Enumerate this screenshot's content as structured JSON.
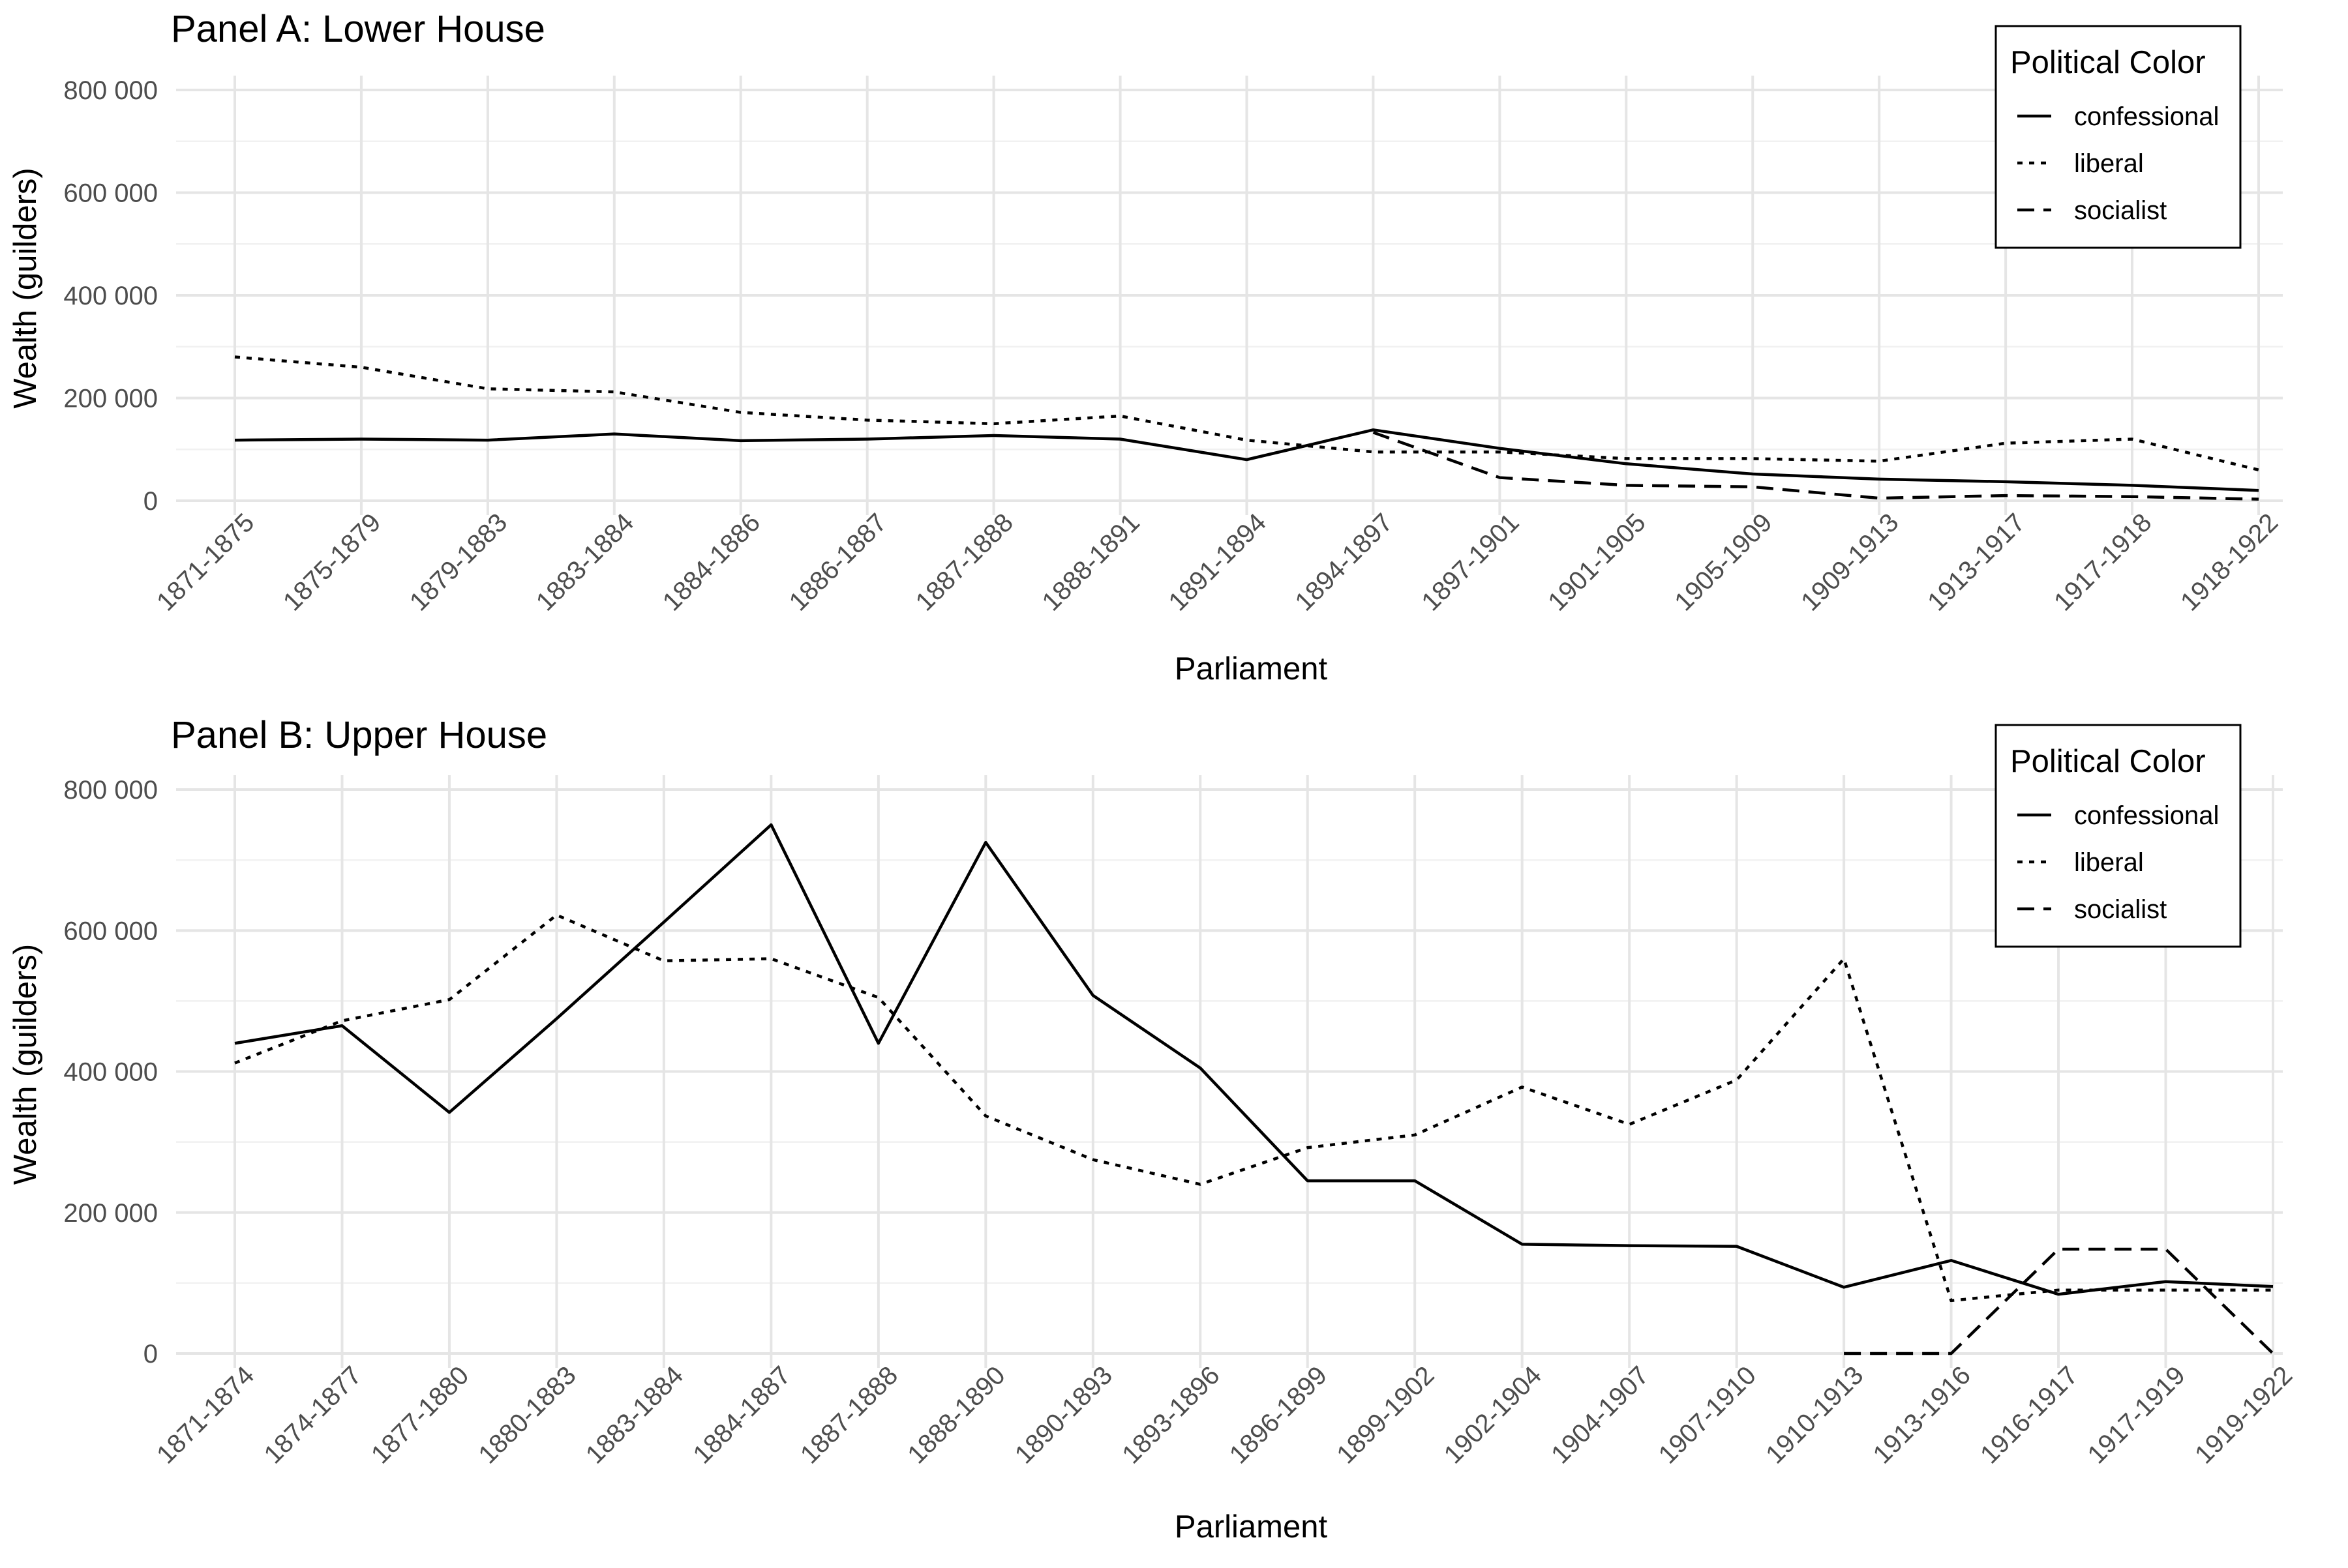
{
  "chart_data": [
    {
      "type": "line",
      "title": "Panel A: Lower House",
      "xlabel": "Parliament",
      "ylabel": "Wealth (guilders)",
      "ylim": [
        0,
        800000
      ],
      "yticks": [
        0,
        200000,
        400000,
        600000,
        800000
      ],
      "ytick_labels": [
        "0",
        "200 000",
        "400 000",
        "600 000",
        "800 000"
      ],
      "categories": [
        "1871-1875",
        "1875-1879",
        "1879-1883",
        "1883-1884",
        "1884-1886",
        "1886-1887",
        "1887-1888",
        "1888-1891",
        "1891-1894",
        "1894-1897",
        "1897-1901",
        "1901-1905",
        "1905-1909",
        "1909-1913",
        "1913-1917",
        "1917-1918",
        "1918-1922"
      ],
      "series": [
        {
          "name": "confessional",
          "dash": "solid",
          "values": [
            118000,
            120000,
            118000,
            130000,
            117000,
            120000,
            127000,
            120000,
            80000,
            138000,
            102000,
            72000,
            52000,
            42000,
            37000,
            30000,
            20000
          ]
        },
        {
          "name": "liberal",
          "dash": "dotted",
          "values": [
            280000,
            260000,
            218000,
            212000,
            172000,
            157000,
            150000,
            165000,
            118000,
            95000,
            95000,
            82000,
            82000,
            77000,
            112000,
            120000,
            60000
          ]
        },
        {
          "name": "socialist",
          "dash": "dashed",
          "values": [
            null,
            null,
            null,
            null,
            null,
            null,
            null,
            null,
            null,
            133000,
            45000,
            30000,
            27000,
            5000,
            10000,
            8000,
            3000
          ]
        }
      ],
      "legend": {
        "title": "Political Color",
        "position": "top-right",
        "items": [
          "confessional",
          "liberal",
          "socialist"
        ]
      },
      "grid": true
    },
    {
      "type": "line",
      "title": "Panel B: Upper House",
      "xlabel": "Parliament",
      "ylabel": "Wealth (guilders)",
      "ylim": [
        0,
        800000
      ],
      "yticks": [
        0,
        200000,
        400000,
        600000,
        800000
      ],
      "ytick_labels": [
        "0",
        "200 000",
        "400 000",
        "600 000",
        "800 000"
      ],
      "categories": [
        "1871-1874",
        "1874-1877",
        "1877-1880",
        "1880-1883",
        "1883-1884",
        "1884-1887",
        "1887-1888",
        "1888-1890",
        "1890-1893",
        "1893-1896",
        "1896-1899",
        "1899-1902",
        "1902-1904",
        "1904-1907",
        "1907-1910",
        "1910-1913",
        "1913-1916",
        "1916-1917",
        "1917-1919",
        "1919-1922"
      ],
      "series": [
        {
          "name": "confessional",
          "dash": "solid",
          "values": [
            440000,
            465000,
            342000,
            475000,
            612000,
            750000,
            440000,
            725000,
            508000,
            405000,
            245000,
            245000,
            155000,
            153000,
            152000,
            94000,
            132000,
            84000,
            102000,
            95000
          ]
        },
        {
          "name": "liberal",
          "dash": "dotted",
          "values": [
            412000,
            472000,
            502000,
            622000,
            557000,
            560000,
            505000,
            337000,
            275000,
            240000,
            292000,
            310000,
            378000,
            325000,
            388000,
            560000,
            75000,
            90000,
            90000,
            90000
          ]
        },
        {
          "name": "socialist",
          "dash": "dashed",
          "values": [
            null,
            null,
            null,
            null,
            null,
            null,
            null,
            null,
            null,
            null,
            null,
            null,
            null,
            null,
            null,
            0,
            0,
            148000,
            148000,
            0
          ]
        }
      ],
      "legend": {
        "title": "Political Color",
        "position": "top-right",
        "items": [
          "confessional",
          "liberal",
          "socialist"
        ]
      },
      "grid": true
    }
  ]
}
